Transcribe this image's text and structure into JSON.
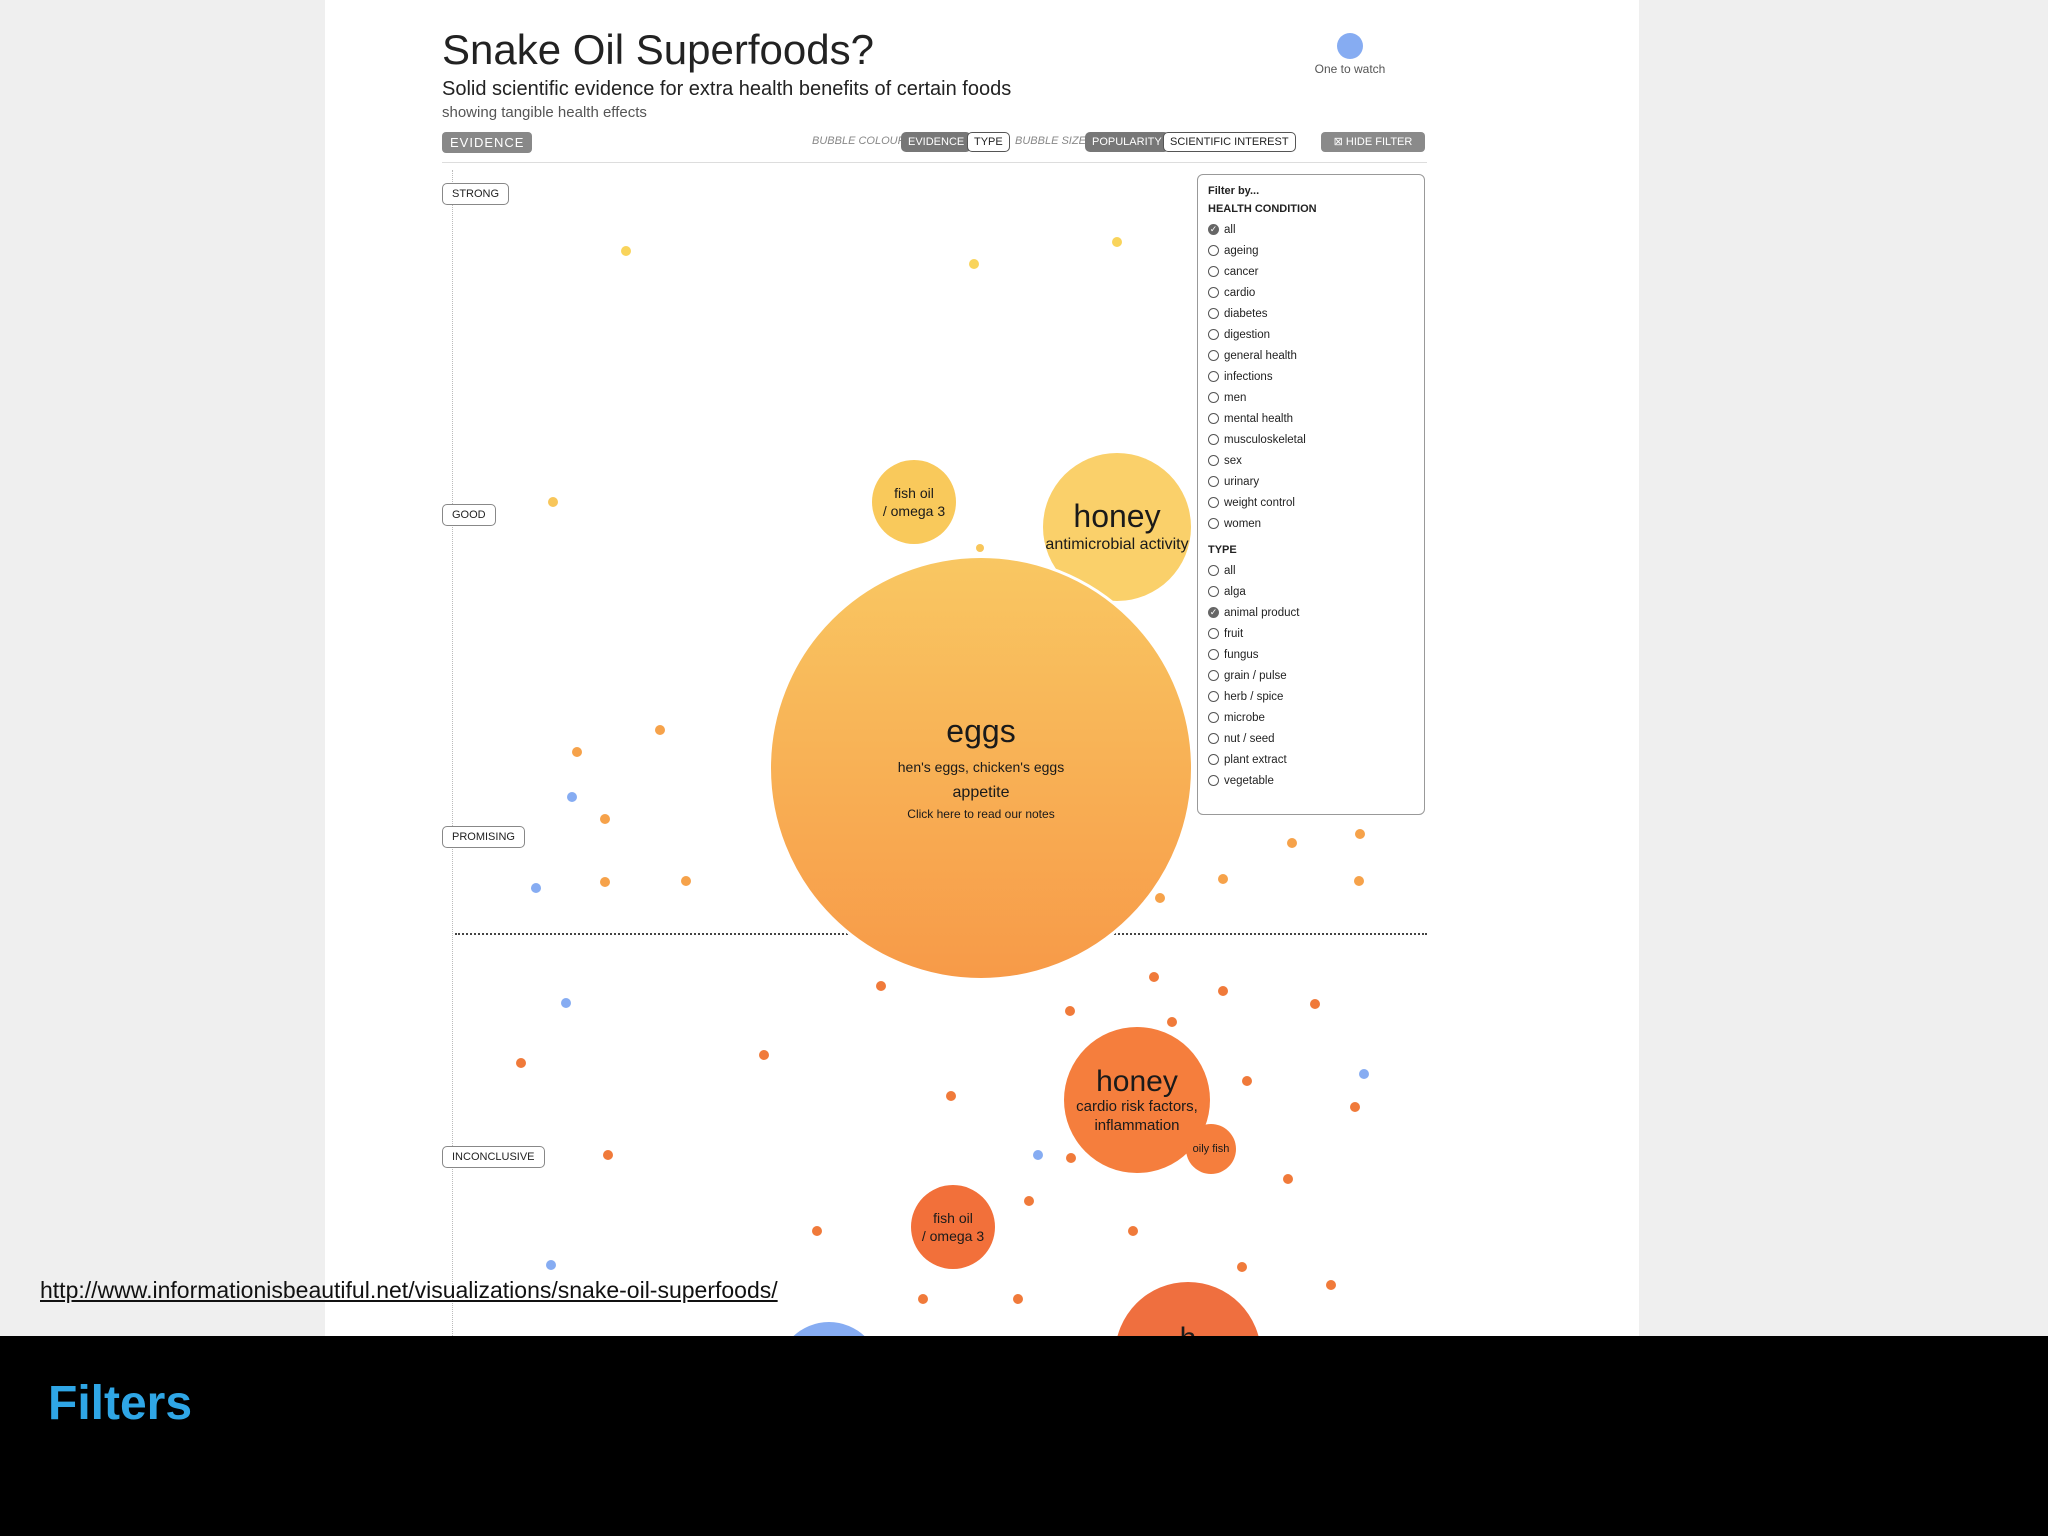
{
  "screen": {
    "title": "Snake Oil Superfoods?",
    "subtitle": "Solid scientific evidence for extra health benefits of certain foods",
    "subsubtitle": "showing tangible health effects",
    "one_to_watch": "One to watch",
    "evidence_badge": "EVIDENCE",
    "bubble_colour_label": "BUBBLE COLOUR",
    "colour_opt_evidence": "EVIDENCE",
    "colour_opt_type": "TYPE",
    "bubble_size_label": "BUBBLE SIZE",
    "size_opt_popularity": "POPULARITY",
    "size_opt_scientific": "SCIENTIFIC INTEREST",
    "hide_filter": "⊠ HIDE FILTER",
    "levels": [
      "STRONG",
      "GOOD",
      "PROMISING",
      "INCONCLUSIVE"
    ],
    "colors": {
      "blue_watch": "#86acf2",
      "yellow": "#f9d45b",
      "orange": "#f6a24a",
      "red_orange": "#f07a3a"
    }
  },
  "bubbles": {
    "fish_oil_good": {
      "line1": "fish oil",
      "line2": "/ omega 3"
    },
    "honey_good": {
      "name": "honey",
      "effect": "antimicrobial activity"
    },
    "eggs": {
      "name": "eggs",
      "aka": "hen's eggs, chicken's eggs",
      "effect": "appetite",
      "note": "Click here to read our notes"
    },
    "honey_inconclusive": {
      "name": "honey",
      "effect_line1": "cardio risk factors,",
      "effect_line2": "inflammation"
    },
    "oily_fish": {
      "name": "oily fish"
    },
    "fish_oil_inconclusive": {
      "line1": "fish oil",
      "line2": "/ omega 3"
    },
    "honey_bottom": {
      "name": "h"
    }
  },
  "filter": {
    "heading": "Filter by...",
    "health_condition_title": "HEALTH CONDITION",
    "health_conditions": [
      "all",
      "ageing",
      "cancer",
      "cardio",
      "diabetes",
      "digestion",
      "general health",
      "infections",
      "men",
      "mental health",
      "musculoskeletal",
      "sex",
      "urinary",
      "weight control",
      "women"
    ],
    "health_selected": "all",
    "type_title": "TYPE",
    "types": [
      "all",
      "alga",
      "animal product",
      "fruit",
      "fungus",
      "grain / pulse",
      "herb / spice",
      "microbe",
      "nut / seed",
      "plant extract",
      "vegetable"
    ],
    "type_selected": "animal product"
  },
  "source_url": "http://www.informationisbeautiful.net/visualizations/snake-oil-superfoods/",
  "caption": "Filters"
}
